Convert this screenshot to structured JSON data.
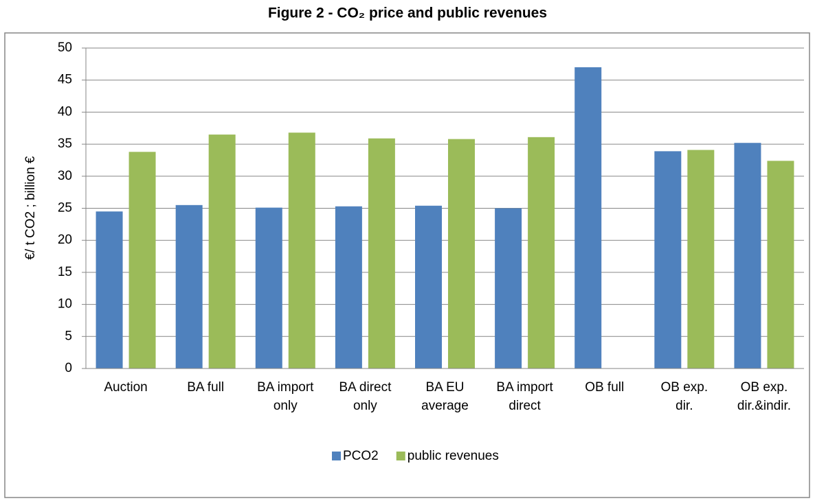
{
  "chart_data": {
    "type": "bar",
    "title": "Figure 2 - CO₂ price and public revenues",
    "y_label": "€/ t CO2 ; billion €",
    "categories": [
      "Auction",
      "BA full",
      "BA import only",
      "BA direct only",
      "BA EU average",
      "BA import direct",
      "OB full",
      "OB exp. dir.",
      "OB exp. dir.&indir."
    ],
    "series": [
      {
        "name": "PCO2",
        "color": "#4f81bd",
        "values": [
          24.5,
          25.5,
          25.1,
          25.3,
          25.4,
          25.0,
          47.0,
          33.9,
          35.2
        ]
      },
      {
        "name": "public revenues",
        "color": "#9bbb59",
        "values": [
          33.8,
          36.5,
          36.8,
          35.9,
          35.8,
          36.1,
          null,
          34.1,
          32.4
        ]
      }
    ],
    "ylim": [
      0,
      50
    ],
    "yticks": [
      0,
      5,
      10,
      15,
      20,
      25,
      30,
      35,
      40,
      45,
      50
    ],
    "grid": true,
    "legend": "bottom"
  }
}
